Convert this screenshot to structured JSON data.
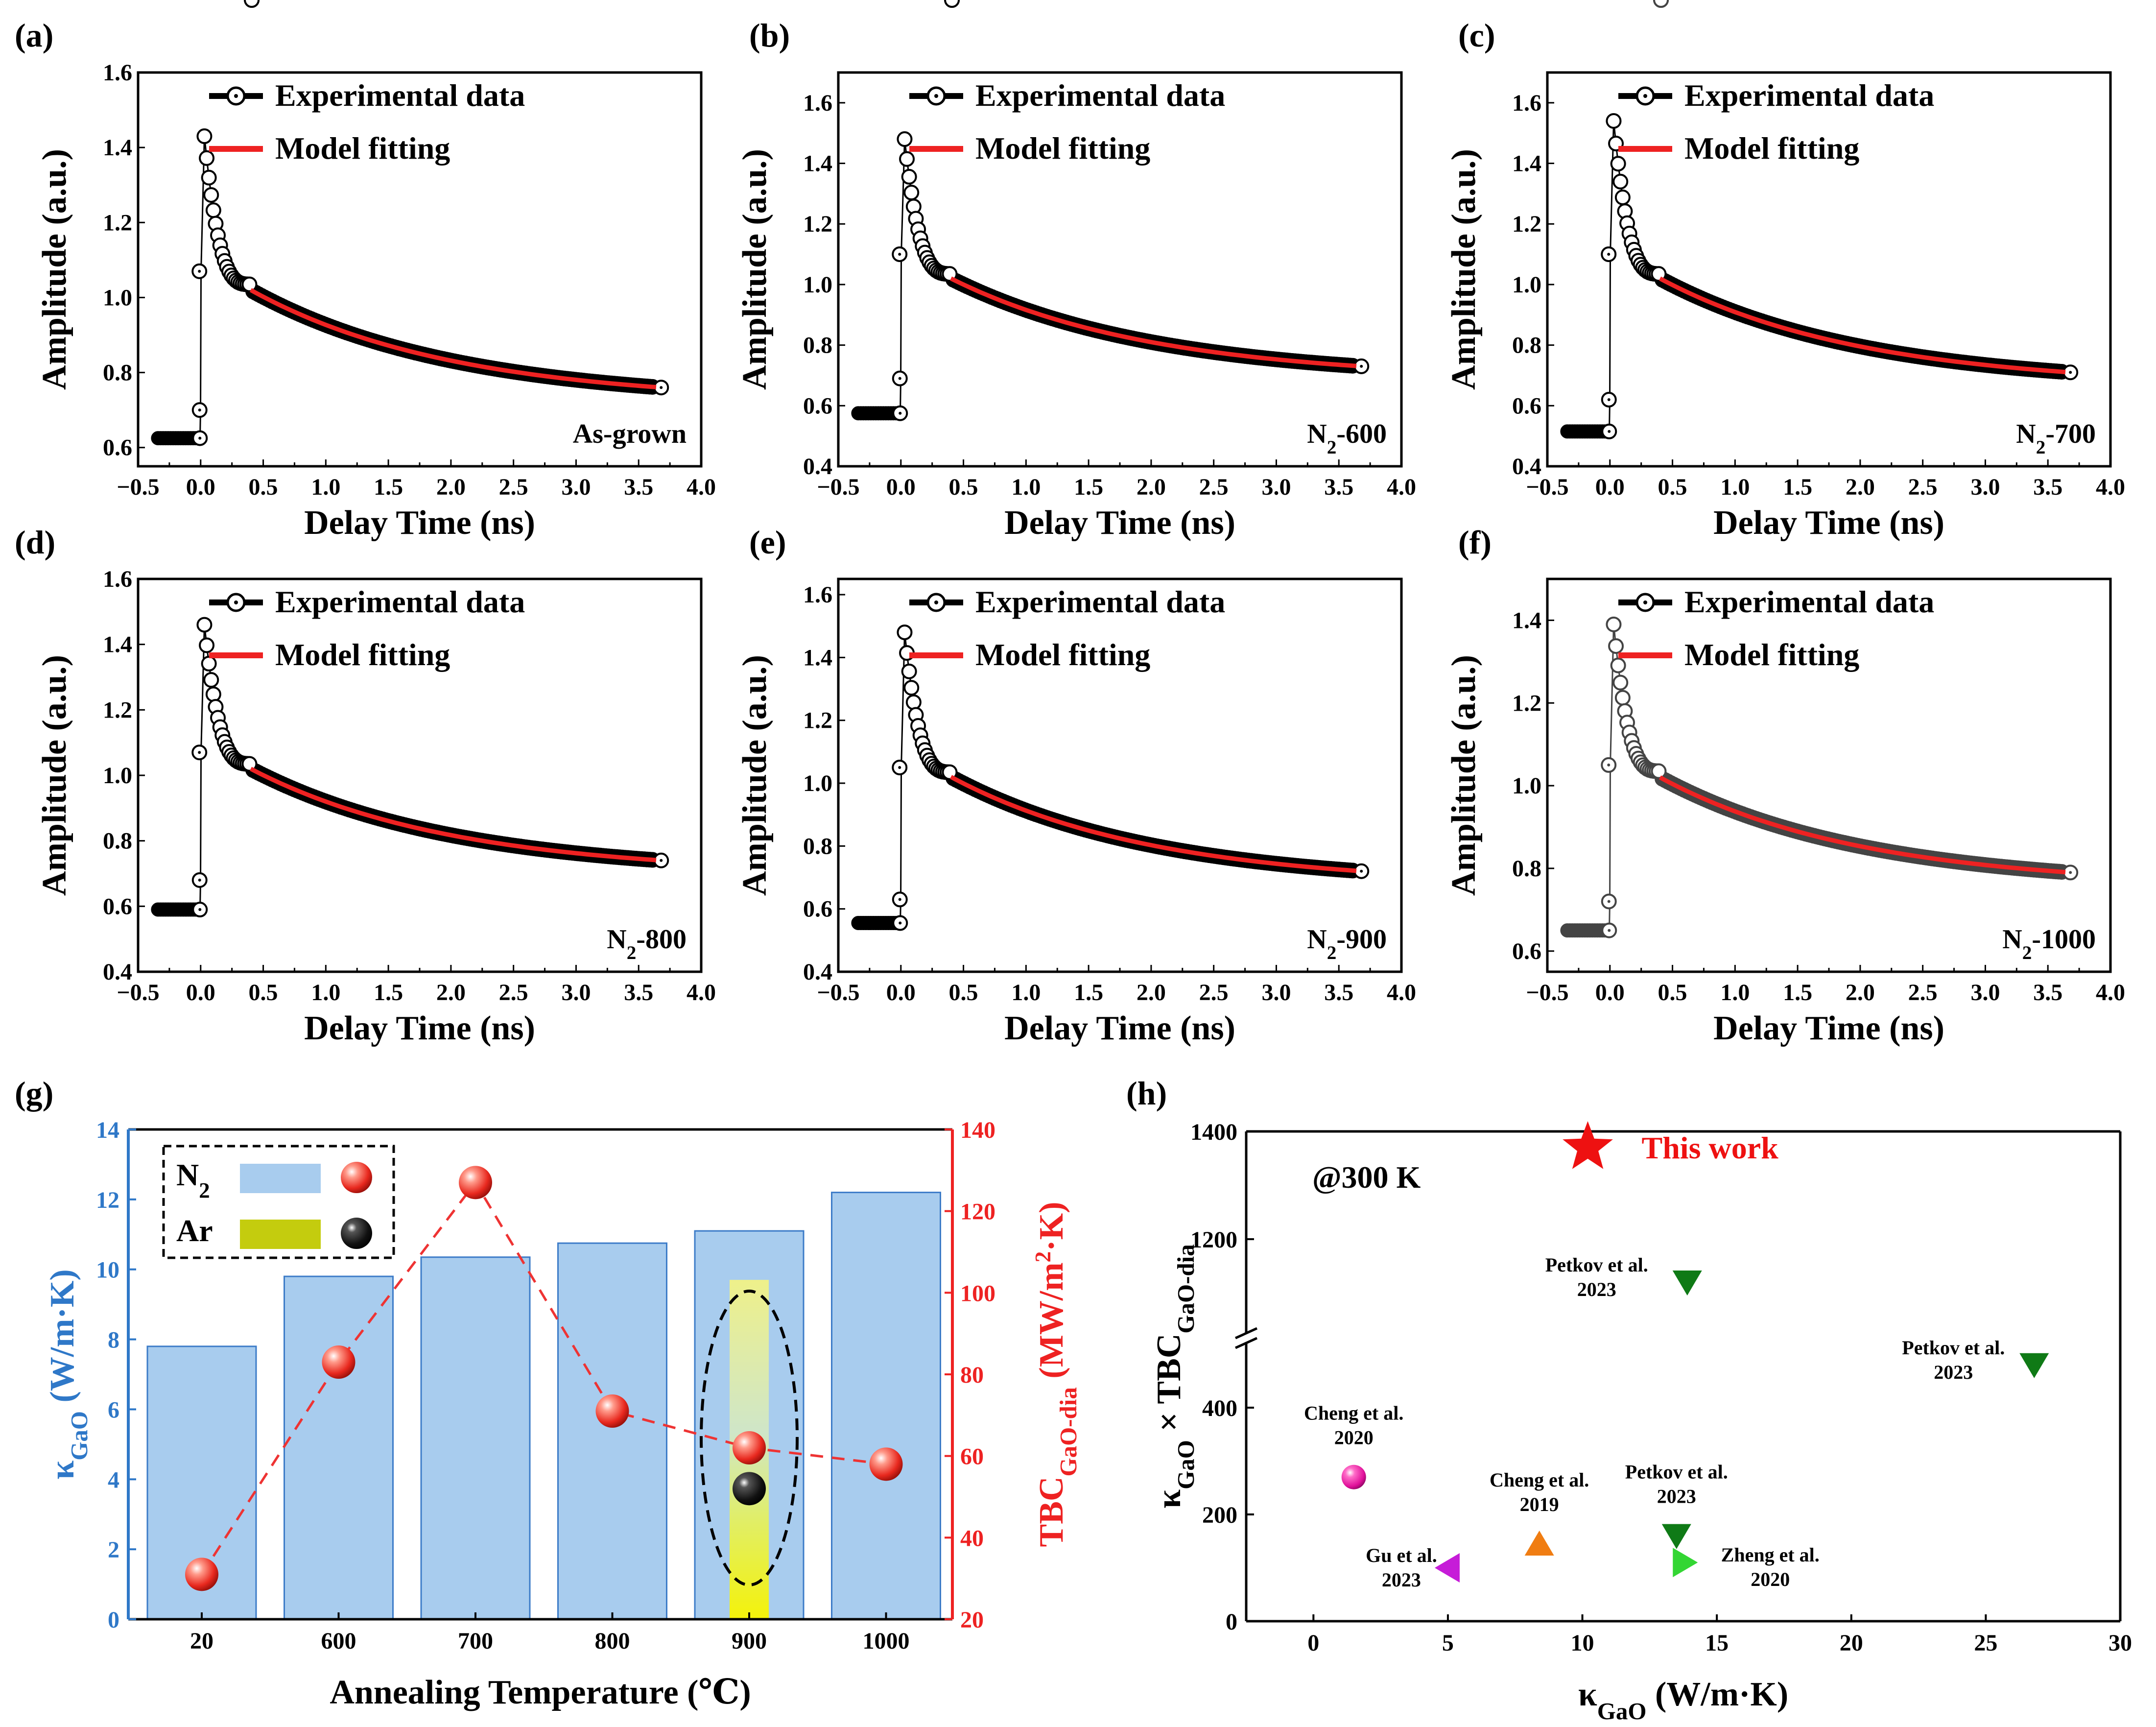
{
  "chart_data": [
    {
      "panel": "(a)",
      "type": "scatter",
      "xlabel": "Delay Time (ns)",
      "ylabel": "Amplitude (a.u.)",
      "xlim": [
        -0.5,
        4.0
      ],
      "ylim": [
        0.55,
        1.6
      ],
      "xticks": [
        -0.5,
        0.0,
        0.5,
        1.0,
        1.5,
        2.0,
        2.5,
        3.0,
        3.5,
        4.0
      ],
      "yticks": [
        0.6,
        0.8,
        1.0,
        1.2,
        1.4,
        1.6
      ],
      "legend": [
        "Experimental data",
        "Model fitting"
      ],
      "sample": "As-grown",
      "baseline": 0.625,
      "peak": 1.43,
      "fit_start": 1.02,
      "fit_end": 0.76,
      "riser": [
        1.07,
        0.7,
        0.625
      ],
      "marker_color": "#000000"
    },
    {
      "panel": "(b)",
      "type": "scatter",
      "xlabel": "Delay Time (ns)",
      "ylabel": "Amplitude (a.u.)",
      "xlim": [
        -0.5,
        4.0
      ],
      "ylim": [
        0.4,
        1.7
      ],
      "xticks": [
        -0.5,
        0.0,
        0.5,
        1.0,
        1.5,
        2.0,
        2.5,
        3.0,
        3.5,
        4.0
      ],
      "yticks": [
        0.4,
        0.6,
        0.8,
        1.0,
        1.2,
        1.4,
        1.6
      ],
      "legend": [
        "Experimental data",
        "Model fitting"
      ],
      "sample": [
        "N",
        "2",
        "-600"
      ],
      "baseline": 0.575,
      "peak": 1.48,
      "fit_start": 1.02,
      "fit_end": 0.73,
      "riser": [
        1.1,
        0.69,
        0.575
      ],
      "marker_color": "#000000"
    },
    {
      "panel": "(c)",
      "type": "scatter",
      "xlabel": "Delay Time (ns)",
      "ylabel": "Amplitude (a.u.)",
      "xlim": [
        -0.5,
        4.0
      ],
      "ylim": [
        0.4,
        1.7
      ],
      "xticks": [
        -0.5,
        0.0,
        0.5,
        1.0,
        1.5,
        2.0,
        2.5,
        3.0,
        3.5,
        4.0
      ],
      "yticks": [
        0.4,
        0.6,
        0.8,
        1.0,
        1.2,
        1.4,
        1.6
      ],
      "legend": [
        "Experimental data",
        "Model fitting"
      ],
      "sample": [
        "N",
        "2",
        "-700"
      ],
      "baseline": 0.515,
      "peak": 1.54,
      "fit_start": 1.02,
      "fit_end": 0.71,
      "riser": [
        1.1,
        0.62,
        0.515
      ],
      "marker_color": "#000000"
    },
    {
      "panel": "(d)",
      "type": "scatter",
      "xlabel": "Delay Time (ns)",
      "ylabel": "Amplitude (a.u.)",
      "xlim": [
        -0.5,
        4.0
      ],
      "ylim": [
        0.4,
        1.6
      ],
      "xticks": [
        -0.5,
        0.0,
        0.5,
        1.0,
        1.5,
        2.0,
        2.5,
        3.0,
        3.5,
        4.0
      ],
      "yticks": [
        0.4,
        0.6,
        0.8,
        1.0,
        1.2,
        1.4,
        1.6
      ],
      "legend": [
        "Experimental data",
        "Model fitting"
      ],
      "sample": [
        "N",
        "2",
        "-800"
      ],
      "baseline": 0.59,
      "peak": 1.46,
      "fit_start": 1.02,
      "fit_end": 0.74,
      "riser": [
        1.07,
        0.68,
        0.59
      ],
      "marker_color": "#000000"
    },
    {
      "panel": "(e)",
      "type": "scatter",
      "xlabel": "Delay Time (ns)",
      "ylabel": "Amplitude (a.u.)",
      "xlim": [
        -0.5,
        4.0
      ],
      "ylim": [
        0.4,
        1.65
      ],
      "xticks": [
        -0.5,
        0.0,
        0.5,
        1.0,
        1.5,
        2.0,
        2.5,
        3.0,
        3.5,
        4.0
      ],
      "yticks": [
        0.4,
        0.6,
        0.8,
        1.0,
        1.2,
        1.4,
        1.6
      ],
      "legend": [
        "Experimental data",
        "Model fitting"
      ],
      "sample": [
        "N",
        "2",
        "-900"
      ],
      "baseline": 0.555,
      "peak": 1.48,
      "fit_start": 1.02,
      "fit_end": 0.72,
      "riser": [
        1.05,
        0.63,
        0.555
      ],
      "marker_color": "#000000"
    },
    {
      "panel": "(f)",
      "type": "scatter",
      "xlabel": "Delay Time (ns)",
      "ylabel": "Amplitude (a.u.)",
      "xlim": [
        -0.5,
        4.0
      ],
      "ylim": [
        0.55,
        1.5
      ],
      "xticks": [
        -0.5,
        0.0,
        0.5,
        1.0,
        1.5,
        2.0,
        2.5,
        3.0,
        3.5,
        4.0
      ],
      "yticks": [
        0.6,
        0.8,
        1.0,
        1.2,
        1.4
      ],
      "legend": [
        "Experimental data",
        "Model fitting"
      ],
      "sample": [
        "N",
        "2",
        "-1000"
      ],
      "baseline": 0.65,
      "peak": 1.39,
      "fit_start": 1.02,
      "fit_end": 0.79,
      "riser": [
        1.05,
        0.72,
        0.65
      ],
      "marker_color": "#444444"
    },
    {
      "panel": "(g)",
      "type": "bar",
      "xlabel": "Annealing Temperature (℃)",
      "ylabel_left": [
        "κ",
        "GaO",
        " (W/m·K)"
      ],
      "ylabel_right": [
        "TBC",
        "GaO-dia",
        " (MW/m",
        "2",
        "·K)"
      ],
      "categories": [
        "20",
        "600",
        "700",
        "800",
        "900",
        "1000"
      ],
      "bar_values_N2": [
        7.8,
        9.8,
        10.35,
        10.75,
        11.1,
        12.2
      ],
      "bar_value_Ar": 9.7,
      "tbc_N2": [
        31,
        83,
        127,
        71,
        62,
        58
      ],
      "tbc_Ar_900": 52,
      "ylim_left": [
        0,
        14
      ],
      "yticks_left": [
        0,
        2,
        4,
        6,
        8,
        10,
        12,
        14
      ],
      "ylim_right": [
        20,
        140
      ],
      "yticks_right": [
        20,
        40,
        60,
        80,
        100,
        120,
        140
      ],
      "legend": [
        {
          "label": [
            "N",
            "2"
          ],
          "bar_color": "#a8ccee"
        },
        {
          "label": [
            "Ar"
          ],
          "bar_color": "#c4cc0e"
        }
      ]
    },
    {
      "panel": "(h)",
      "type": "scatter",
      "xlabel": [
        "κ",
        "GaO",
        " (W/m·K)"
      ],
      "ylabel": [
        "κ",
        "GaO",
        " × TBC",
        "GaO-dia"
      ],
      "xlim": [
        -2.5,
        30
      ],
      "xticks": [
        0,
        5,
        10,
        15,
        20,
        25,
        30
      ],
      "yticks": [
        0,
        200,
        400,
        1200,
        1400
      ],
      "note": "@300 K",
      "points": [
        {
          "name": "This work",
          "x": 10.2,
          "y": 1370,
          "marker": "star",
          "color": "#ee1111"
        },
        {
          "name": "Petkov et al.",
          "year": "2023",
          "x": 13.9,
          "y": 1120,
          "marker": "triangle-down",
          "color": "#0f7a16"
        },
        {
          "name": "Petkov et al.",
          "year": "2023",
          "x": 26.8,
          "y": 480,
          "marker": "triangle-down",
          "color": "#0f7a16"
        },
        {
          "name": "Cheng et al.",
          "year": "2020",
          "x": 1.5,
          "y": 270,
          "marker": "sphere",
          "color": "#e0109a"
        },
        {
          "name": "Cheng et al.",
          "year": "2019",
          "x": 8.4,
          "y": 145,
          "marker": "triangle-up",
          "color": "#f07d12"
        },
        {
          "name": "Petkov et al.",
          "year": "2023",
          "x": 13.5,
          "y": 160,
          "marker": "triangle-down",
          "color": "#0f7a16"
        },
        {
          "name": "Zheng et al.",
          "year": "2020",
          "x": 13.8,
          "y": 110,
          "marker": "triangle-right",
          "color": "#33d633"
        },
        {
          "name": "Gu et al.",
          "year": "2023",
          "x": 5.0,
          "y": 100,
          "marker": "triangle-left",
          "color": "#c61cd8"
        }
      ]
    }
  ]
}
